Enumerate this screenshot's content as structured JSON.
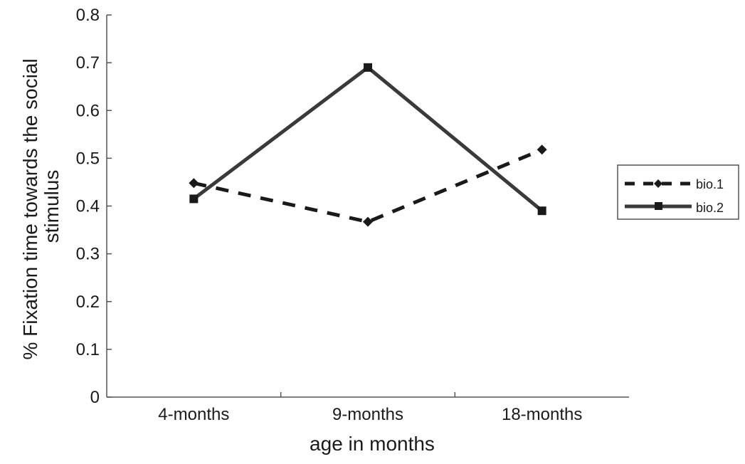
{
  "chart_data": {
    "type": "line",
    "categories": [
      "4-months",
      "9-months",
      "18-months"
    ],
    "series": [
      {
        "name": "bio.1",
        "values": [
          0.448,
          0.367,
          0.518
        ],
        "marker": "diamond",
        "line": "dashed",
        "color": "#1a1a1a"
      },
      {
        "name": "bio.2",
        "values": [
          0.415,
          0.69,
          0.39
        ],
        "marker": "square",
        "line": "solid",
        "color": "#3a3a3a"
      }
    ],
    "xlabel": "age in months",
    "ylabel": [
      "% Fixation time towards the social",
      "stimulus"
    ],
    "ylim": [
      0,
      0.8
    ],
    "yticks": [
      "0",
      "0.1",
      "0.2",
      "0.3",
      "0.4",
      "0.5",
      "0.6",
      "0.7",
      "0.8"
    ],
    "grid": false,
    "legend_position": "right"
  }
}
